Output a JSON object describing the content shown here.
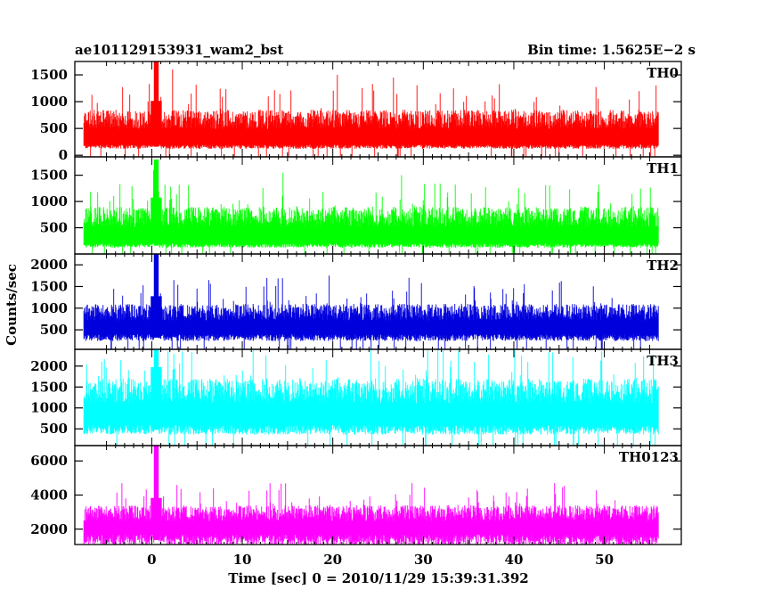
{
  "header": {
    "title": "ae101129153931_wam2_bst",
    "bin_time": "Bin time: 1.5625E−2 s"
  },
  "chart_data": {
    "type": "line",
    "title": "ae101129153931_wam2_bst",
    "xlabel": "Time [sec] 0 = 2010/11/29 15:39:31.392",
    "ylabel": "Counts/sec",
    "xlim": [
      -8.5,
      58.5
    ],
    "x_ticks": [
      0,
      10,
      20,
      30,
      40,
      50
    ],
    "data_x_range": [
      -7.5,
      56
    ],
    "bin_time": 0.015625,
    "grid": false,
    "panels": [
      {
        "name": "TH0",
        "color": "#ff0000",
        "ylim": [
          -30,
          1750
        ],
        "y_ticks": [
          0,
          500,
          1000,
          1500
        ],
        "base": 200,
        "range": 650,
        "spike_max": 1350,
        "burst_peak": 1750,
        "notable_peaks": [
          {
            "x": 0.5,
            "y": 1750
          },
          {
            "x": 2.3,
            "y": 1600
          },
          {
            "x": 20.5,
            "y": 1500
          },
          {
            "x": 26.7,
            "y": 1450
          }
        ]
      },
      {
        "name": "TH1",
        "color": "#00ff00",
        "ylim": [
          0,
          1850
        ],
        "y_ticks": [
          500,
          1000,
          1500
        ],
        "base": 200,
        "range": 700,
        "spike_max": 1350,
        "burst_peak": 1800,
        "notable_peaks": [
          {
            "x": 0.5,
            "y": 1800
          },
          {
            "x": 0.2,
            "y": 1600
          },
          {
            "x": 14.5,
            "y": 1550
          },
          {
            "x": 27.6,
            "y": 1500
          }
        ]
      },
      {
        "name": "TH2",
        "color": "#0000dd",
        "ylim": [
          50,
          2250
        ],
        "y_ticks": [
          500,
          1000,
          1500,
          2000
        ],
        "base": 400,
        "range": 700,
        "spike_max": 1700,
        "burst_peak": 2250,
        "notable_peaks": [
          {
            "x": 0.5,
            "y": 2250
          },
          {
            "x": 6.3,
            "y": 1650
          },
          {
            "x": 19.6,
            "y": 1750
          }
        ]
      },
      {
        "name": "TH3",
        "color": "#00ffff",
        "ylim": [
          100,
          2400
        ],
        "y_ticks": [
          500,
          1000,
          1500,
          2000
        ],
        "base": 600,
        "range": 1100,
        "spike_max": 2400,
        "burst_peak": 2400,
        "notable_peaks": [
          {
            "x": 0.5,
            "y": 2400
          },
          {
            "x": 11.2,
            "y": 2400
          },
          {
            "x": 24.2,
            "y": 2400
          },
          {
            "x": 40.1,
            "y": 2400
          }
        ]
      },
      {
        "name": "TH0123",
        "color": "#ff00ff",
        "ylim": [
          1100,
          6900
        ],
        "y_ticks": [
          2000,
          4000,
          6000
        ],
        "base": 1700,
        "range": 1700,
        "spike_max": 4700,
        "burst_peak": 6900,
        "notable_peaks": [
          {
            "x": 0.5,
            "y": 6900
          },
          {
            "x": -3.3,
            "y": 4700
          },
          {
            "x": 44.5,
            "y": 4700
          }
        ]
      }
    ]
  },
  "colors": {
    "frame": "#000000",
    "background": "#ffffff"
  }
}
